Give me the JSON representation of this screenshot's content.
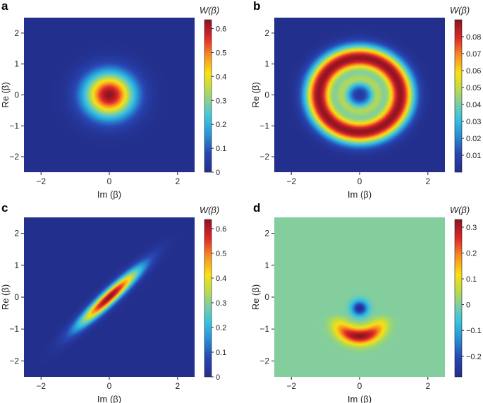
{
  "chart_data": [
    {
      "type": "heatmap",
      "panel_label": "a",
      "distribution": "vacuum",
      "xlabel": "Im (β)",
      "ylabel": "Re (β)",
      "xlim": [
        -2.5,
        2.5
      ],
      "ylim": [
        -2.5,
        2.5
      ],
      "x_ticks": [
        "−2",
        "0",
        "2"
      ],
      "y_ticks": [
        "−2",
        "−1",
        "0",
        "1",
        "2"
      ],
      "colorbar": {
        "title": "W(β)",
        "range": [
          0,
          0.637
        ],
        "ticks": [
          "0",
          "0.1",
          "0.2",
          "0.3",
          "0.4",
          "0.5",
          "0.6"
        ]
      },
      "peak_value": 0.637
    },
    {
      "type": "heatmap",
      "panel_label": "b",
      "distribution": "fock-ring",
      "xlabel": "Im (β)",
      "ylabel": "Re (β)",
      "xlim": [
        -2.5,
        2.5
      ],
      "ylim": [
        -2.5,
        2.5
      ],
      "x_ticks": [
        "−2",
        "0",
        "2"
      ],
      "y_ticks": [
        "−2",
        "−1",
        "0",
        "1",
        "2"
      ],
      "colorbar": {
        "title": "W(β)",
        "range": [
          0,
          0.09
        ],
        "ticks": [
          "0.01",
          "0.02",
          "0.03",
          "0.04",
          "0.05",
          "0.06",
          "0.07",
          "0.08"
        ]
      },
      "inner_ring_radius": 0.5,
      "outer_ring_radius": 1.2
    },
    {
      "type": "heatmap",
      "panel_label": "c",
      "distribution": "squeezed",
      "xlabel": "Im (β)",
      "ylabel": "Re (β)",
      "xlim": [
        -2.5,
        2.5
      ],
      "ylim": [
        -2.5,
        2.5
      ],
      "x_ticks": [
        "−2",
        "0",
        "2"
      ],
      "y_ticks": [
        "−2",
        "−1",
        "0",
        "1",
        "2"
      ],
      "colorbar": {
        "title": "W(β)",
        "range": [
          0,
          0.637
        ],
        "ticks": [
          "0",
          "0.1",
          "0.2",
          "0.3",
          "0.4",
          "0.5",
          "0.6"
        ]
      },
      "squeeze_angle_deg": 45
    },
    {
      "type": "heatmap",
      "panel_label": "d",
      "distribution": "crescent",
      "xlabel": "Im (β)",
      "ylabel": "Re (β)",
      "xlim": [
        -2.5,
        2.5
      ],
      "ylim": [
        -2.5,
        2.5
      ],
      "x_ticks": [
        "−2",
        "0",
        "2"
      ],
      "y_ticks": [
        "−2",
        "−1",
        "0",
        "1",
        "2"
      ],
      "colorbar": {
        "title": "W(β)",
        "range": [
          -0.28,
          0.33
        ],
        "ticks": [
          "−0.2",
          "−0.1",
          "0",
          "0.1",
          "0.2",
          "0.3"
        ]
      },
      "negative_dip_center_re": -0.35,
      "positive_lobe_center_re": -1.25
    }
  ]
}
